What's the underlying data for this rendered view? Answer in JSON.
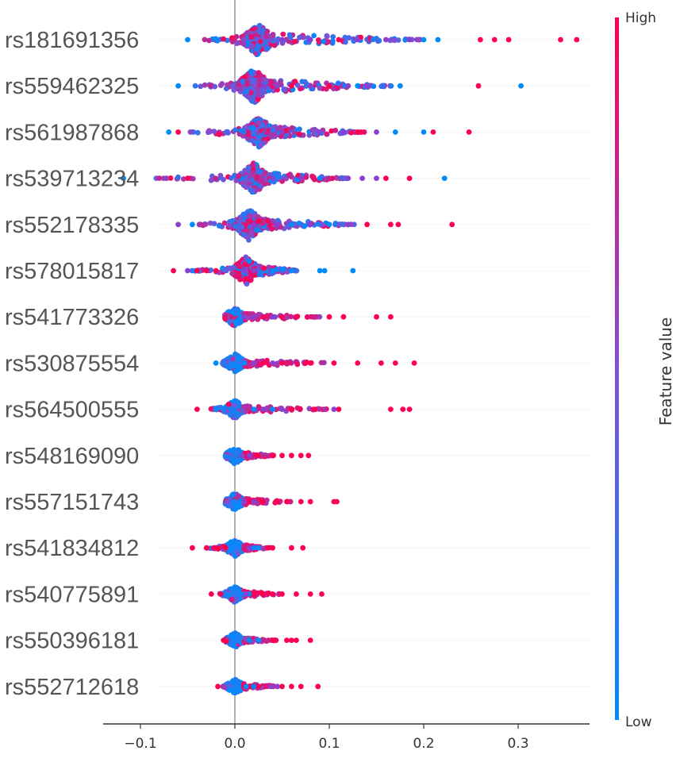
{
  "chart_data": {
    "type": "scatter",
    "subtype": "shap-beeswarm",
    "title": "",
    "xlabel": "",
    "ylabel": "",
    "xlim": [
      -0.14,
      0.375
    ],
    "xticks": [
      -0.1,
      0.0,
      0.1,
      0.2,
      0.3
    ],
    "xtick_labels": [
      "−0.1",
      "0.0",
      "0.1",
      "0.2",
      "0.3"
    ],
    "colorbar": {
      "title": "Feature value",
      "high_label": "High",
      "low_label": "Low",
      "high_color": "#ff0051",
      "low_color": "#008bfb"
    },
    "features": [
      {
        "name": "rs181691356",
        "min": -0.05,
        "max": 0.36,
        "core": 0.025,
        "width": 0.95,
        "high_x": [
          0.11,
          0.26,
          0.275,
          0.29,
          0.345,
          0.362
        ],
        "low_x": [
          -0.05,
          0.2,
          0.215
        ],
        "mixed_x": [
          0.05,
          0.08,
          0.13,
          0.16,
          0.185
        ]
      },
      {
        "name": "rs559462325",
        "min": -0.06,
        "max": 0.305,
        "core": 0.02,
        "width": 1.0,
        "high_x": [
          0.06,
          0.1,
          0.258
        ],
        "low_x": [
          -0.06,
          0.13,
          0.175,
          0.303
        ],
        "mixed_x": [
          0.03,
          0.045,
          0.08,
          0.12,
          0.14
        ]
      },
      {
        "name": "rs561987868",
        "min": -0.07,
        "max": 0.25,
        "core": 0.025,
        "width": 0.92,
        "high_x": [
          -0.06,
          0.13,
          0.21,
          0.248
        ],
        "low_x": [
          -0.07,
          0.17,
          0.2
        ],
        "mixed_x": [
          0.05,
          0.09,
          0.115,
          0.15
        ]
      },
      {
        "name": "rs539713234",
        "min": -0.12,
        "max": 0.22,
        "core": 0.02,
        "width": 0.9,
        "high_x": [
          -0.05,
          0.16,
          0.185
        ],
        "low_x": [
          -0.118,
          0.09,
          0.222
        ],
        "mixed_x": [
          0.04,
          0.07,
          0.12,
          0.135,
          0.15
        ]
      },
      {
        "name": "rs552178335",
        "min": -0.06,
        "max": 0.23,
        "core": 0.015,
        "width": 0.9,
        "high_x": [
          0.14,
          0.165,
          0.173,
          0.23
        ],
        "low_x": [
          -0.045,
          0.06,
          0.1
        ],
        "mixed_x": [
          -0.06,
          0.02,
          0.045,
          0.08,
          0.12
        ]
      },
      {
        "name": "rs578015817",
        "min": -0.065,
        "max": 0.125,
        "core": 0.012,
        "width": 0.8,
        "high_x": [
          -0.065,
          -0.04,
          -0.03,
          -0.02
        ],
        "low_x": [
          0.04,
          0.06,
          0.09,
          0.095,
          0.125
        ],
        "mixed_x": [
          -0.05,
          0.01,
          0.02
        ]
      },
      {
        "name": "rs541773326",
        "min": -0.005,
        "max": 0.165,
        "core": 0.0,
        "width": 0.55,
        "high_x": [
          0.03,
          0.05,
          0.065,
          0.1,
          0.115,
          0.15,
          0.165
        ],
        "low_x": [],
        "mixed_x": [
          0.01,
          0.02,
          0.04
        ]
      },
      {
        "name": "rs530875554",
        "min": -0.02,
        "max": 0.19,
        "core": 0.0,
        "width": 0.55,
        "high_x": [
          0.03,
          0.05,
          0.075,
          0.08,
          0.105,
          0.13,
          0.155,
          0.17,
          0.19
        ],
        "low_x": [
          -0.02,
          0.01
        ],
        "mixed_x": [
          0.02,
          0.04
        ]
      },
      {
        "name": "rs564500555",
        "min": -0.04,
        "max": 0.185,
        "core": 0.0,
        "width": 0.55,
        "high_x": [
          -0.04,
          0.06,
          0.085,
          0.11,
          0.165,
          0.178,
          0.185
        ],
        "low_x": [
          -0.02,
          0.02,
          0.04
        ],
        "mixed_x": [
          0.03,
          0.05,
          0.105
        ]
      },
      {
        "name": "rs548169090",
        "min": -0.01,
        "max": 0.078,
        "core": 0.0,
        "width": 0.5,
        "high_x": [
          0.012,
          0.025,
          0.04,
          0.05,
          0.06,
          0.07,
          0.078
        ],
        "low_x": [],
        "mixed_x": [
          0.008,
          0.015
        ]
      },
      {
        "name": "rs557151743",
        "min": -0.01,
        "max": 0.108,
        "core": 0.0,
        "width": 0.5,
        "high_x": [
          0.015,
          0.03,
          0.045,
          0.055,
          0.07,
          0.08,
          0.105,
          0.108
        ],
        "low_x": [],
        "mixed_x": [
          0.01,
          0.02
        ]
      },
      {
        "name": "rs541834812",
        "min": -0.045,
        "max": 0.072,
        "core": 0.0,
        "width": 0.5,
        "high_x": [
          -0.045,
          -0.03,
          -0.02,
          -0.01,
          0.035,
          0.04,
          0.06,
          0.072
        ],
        "low_x": [
          0.02,
          0.025
        ],
        "mixed_x": [
          0.015
        ]
      },
      {
        "name": "rs540775891",
        "min": -0.025,
        "max": 0.092,
        "core": 0.0,
        "width": 0.5,
        "high_x": [
          -0.025,
          -0.015,
          0.02,
          0.03,
          0.04,
          0.05,
          0.065,
          0.08,
          0.092
        ],
        "low_x": [
          0.01,
          0.015
        ],
        "mixed_x": [
          0.012
        ]
      },
      {
        "name": "rs550396181",
        "min": -0.012,
        "max": 0.08,
        "core": 0.0,
        "width": 0.45,
        "high_x": [
          -0.012,
          0.04,
          0.055,
          0.06,
          0.065,
          0.08
        ],
        "low_x": [
          0.015,
          0.025
        ],
        "mixed_x": []
      },
      {
        "name": "rs552712618",
        "min": -0.018,
        "max": 0.088,
        "core": 0.0,
        "width": 0.45,
        "high_x": [
          -0.018,
          0.015,
          0.025,
          0.05,
          0.06,
          0.07,
          0.088
        ],
        "low_x": [
          0.012,
          0.02
        ],
        "mixed_x": [
          0.038,
          0.045
        ]
      }
    ]
  }
}
